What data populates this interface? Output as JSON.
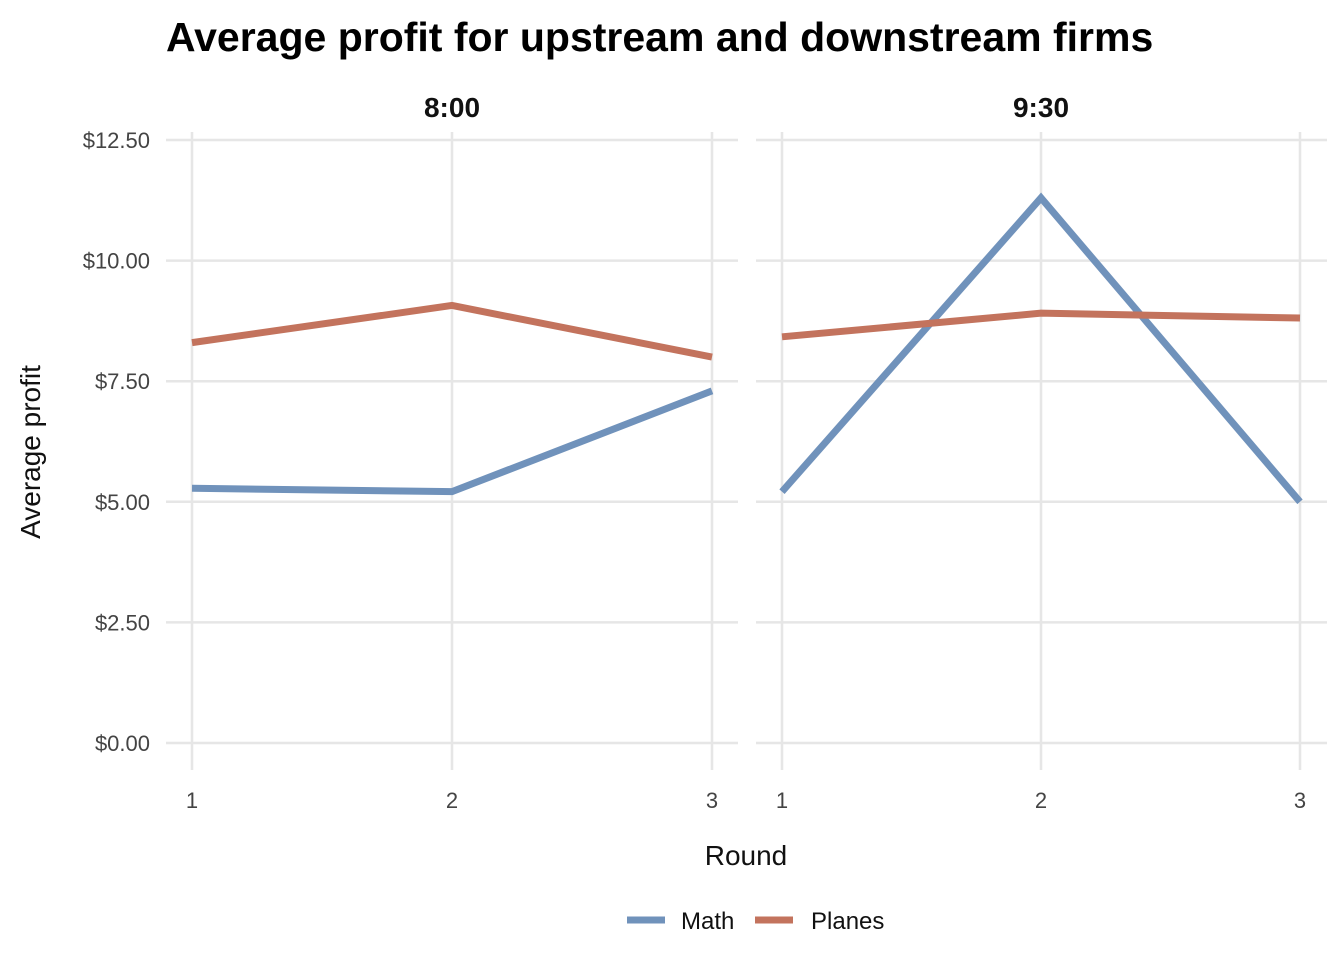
{
  "chart_data": {
    "type": "line",
    "title": "Average profit for upstream and downstream firms",
    "xlabel": "Round",
    "ylabel": "Average profit",
    "x": [
      1,
      2,
      3
    ],
    "x_tick_labels": [
      "1",
      "2",
      "3"
    ],
    "ylim": [
      0,
      12.5
    ],
    "y_ticks": [
      0,
      2.5,
      5,
      7.5,
      10,
      12.5
    ],
    "y_tick_labels": [
      "$0.00",
      "$2.50",
      "$5.00",
      "$7.50",
      "$10.00",
      "$12.50"
    ],
    "grid": true,
    "legend_position": "bottom",
    "legend": [
      {
        "name": "Math",
        "color": "#7092bb"
      },
      {
        "name": "Planes",
        "color": "#c3735d"
      }
    ],
    "facets": [
      {
        "label": "8:00",
        "series": [
          {
            "name": "Math",
            "values": [
              5.28,
              5.21,
              7.3
            ]
          },
          {
            "name": "Planes",
            "values": [
              8.3,
              9.07,
              8.0
            ]
          }
        ]
      },
      {
        "label": "9:30",
        "series": [
          {
            "name": "Math",
            "values": [
              5.21,
              11.3,
              5.0
            ]
          },
          {
            "name": "Planes",
            "values": [
              8.42,
              8.91,
              8.81
            ]
          }
        ]
      }
    ]
  }
}
